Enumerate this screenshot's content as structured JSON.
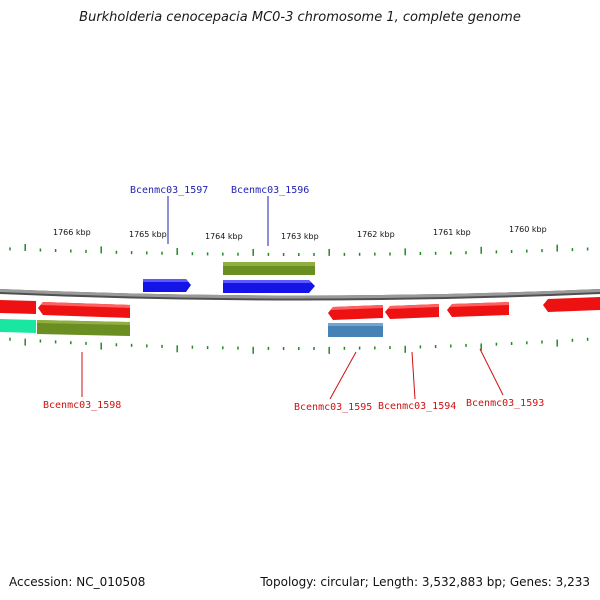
{
  "title": "Burkholderia cenocepacia MC0-3 chromosome 1, complete genome",
  "footer": {
    "accession": "Accession: NC_010508",
    "topology": "Topology: circular; Length: 3,532,883 bp; Genes: 3,233"
  },
  "colors": {
    "backbone": "#808080",
    "ticks": "#228b22",
    "plus_label": "#1f1fb0",
    "minus_label": "#cc1111",
    "cds_forward": "#1414e6",
    "cds_reverse": "#ee1111",
    "gene_olive": "#6b8e23",
    "gene_steel": "#4682b4",
    "gene_spring": "#19e6a0"
  },
  "scale": {
    "labels": [
      "1766 kbp",
      "1765 kbp",
      "1764 kbp",
      "1763 kbp",
      "1762 kbp",
      "1761 kbp",
      "1760 kbp"
    ]
  },
  "genes": {
    "plus": [
      "Bcenmc03_1597",
      "Bcenmc03_1596"
    ],
    "minus": [
      "Bcenmc03_1598",
      "Bcenmc03_1595",
      "Bcenmc03_1594",
      "Bcenmc03_1593"
    ]
  }
}
